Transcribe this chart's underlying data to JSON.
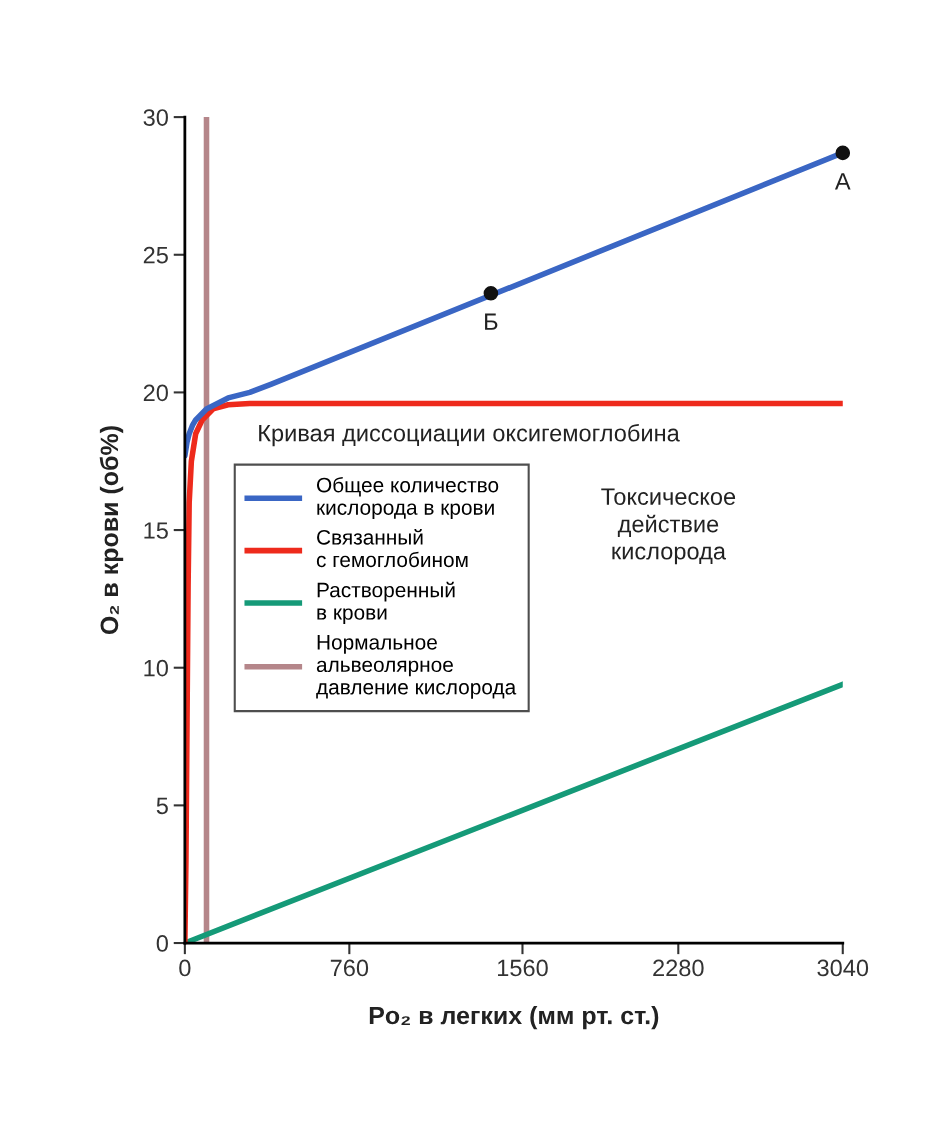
{
  "chart_data": {
    "type": "line",
    "xlabel": "Po₂ в легких (мм рт. ст.)",
    "ylabel": "O₂ в крови (об%)",
    "xlim": [
      0,
      3040
    ],
    "ylim": [
      0,
      30
    ],
    "xticks": [
      0,
      760,
      1560,
      2280,
      3040
    ],
    "yticks": [
      0,
      5,
      10,
      15,
      20,
      25,
      30
    ],
    "grid": false,
    "legend": "left",
    "marker": "none",
    "line_style": "solid",
    "series": [
      {
        "name": "Общее количество\nкислорода в крови",
        "color": "#3a66c4",
        "x": [
          0,
          10,
          20,
          35,
          50,
          75,
          100,
          150,
          200,
          300,
          400,
          3040
        ],
        "values": [
          17.7,
          18.2,
          18.5,
          18.8,
          19.0,
          19.2,
          19.4,
          19.6,
          19.8,
          20.0,
          20.3,
          28.7
        ]
      },
      {
        "name": "Связанный\nс гемоглобином",
        "color": "#ee2a1c",
        "x": [
          0,
          5,
          10,
          15,
          20,
          30,
          50,
          80,
          130,
          200,
          300,
          3040
        ],
        "values": [
          0,
          3,
          8,
          13,
          16,
          17.5,
          18.5,
          19.0,
          19.4,
          19.55,
          19.6,
          19.6
        ]
      },
      {
        "name": "Растворенный\nв крови",
        "color": "#159a78",
        "x": [
          0,
          3040
        ],
        "values": [
          0,
          9.4
        ]
      },
      {
        "name": "Нормальное\nальвеолярное\nдавление кислорода",
        "color": "#b5868a",
        "x": [
          100,
          100
        ],
        "values": [
          0,
          30
        ]
      },
      {
        "type": "scatter",
        "color": "#111111",
        "marker": "circle",
        "x": [
          1414,
          3040
        ],
        "values": [
          23.6,
          28.7
        ]
      }
    ],
    "annotations": [
      {
        "text": "А",
        "x": 3040,
        "y": 28.7
      },
      {
        "text": "Б",
        "x": 1414,
        "y": 23.6
      },
      "Кривая диссоциации оксигемоглобина",
      "Токсическое\nдействие\nкислорода"
    ]
  }
}
